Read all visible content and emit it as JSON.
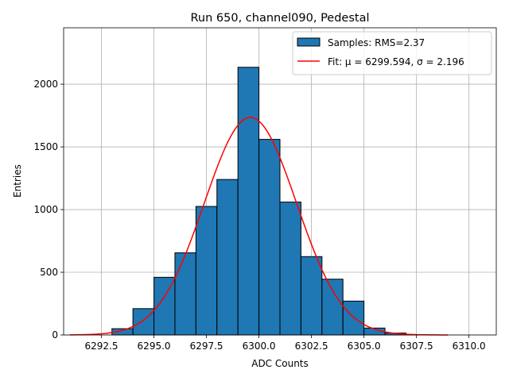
{
  "chart_data": {
    "type": "bar",
    "title": "Run 650, channel090, Pedestal",
    "xlabel": "ADC Counts",
    "ylabel": "Entries",
    "xlim": [
      6290.7,
      6311.3
    ],
    "ylim": [
      0,
      2450
    ],
    "grid": true,
    "legend_position": "top-right",
    "xticks": [
      6292.5,
      6295.0,
      6297.5,
      6300.0,
      6302.5,
      6305.0,
      6307.5,
      6310.0
    ],
    "xtick_labels": [
      "6292.5",
      "6295.0",
      "6297.5",
      "6300.0",
      "6302.5",
      "6305.0",
      "6307.5",
      "6310.0"
    ],
    "yticks": [
      0,
      500,
      1000,
      1500,
      2000
    ],
    "ytick_labels": [
      "0",
      "500",
      "1000",
      "1500",
      "2000"
    ],
    "bin_edges": [
      6291,
      6292,
      6293,
      6294,
      6295,
      6296,
      6297,
      6298,
      6299,
      6300,
      6301,
      6302,
      6303,
      6304,
      6305,
      6306,
      6307,
      6308,
      6309,
      6310,
      6311
    ],
    "series": [
      {
        "name": "Samples: RMS=2.37",
        "kind": "histogram",
        "color": "#1f77b4",
        "edgecolor": "#000000",
        "values": [
          0,
          0,
          50,
          210,
          460,
          655,
          1025,
          1240,
          2135,
          1560,
          1060,
          625,
          445,
          270,
          55,
          15,
          3,
          0,
          0,
          0
        ]
      },
      {
        "name": "Fit: μ = 6299.594, σ = 2.196",
        "kind": "gaussian-fit",
        "color": "#ff0000",
        "amplitude": 1735,
        "mu": 6299.594,
        "sigma": 2.196,
        "x_range": [
          6291,
          6309
        ]
      }
    ]
  }
}
